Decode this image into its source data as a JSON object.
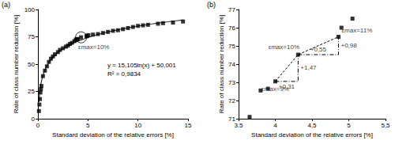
{
  "chart_data": [
    {
      "type": "scatter",
      "title": "(a)",
      "x_label": "Standard deviation of the relative errors [%]",
      "y_label": "Rate of class number reduction [%]",
      "x": [
        0.1,
        0.15,
        0.2,
        0.25,
        0.3,
        0.35,
        0.5,
        0.7,
        0.9,
        1.1,
        1.3,
        1.5,
        1.7,
        2.0,
        2.2,
        2.5,
        2.8,
        3.0,
        3.2,
        3.4,
        3.65,
        3.8,
        3.9,
        4.0,
        4.31,
        4.86,
        4.9,
        5.05,
        5.5,
        6.0,
        6.5,
        7.0,
        7.5,
        8.0,
        8.5,
        9.0,
        9.5,
        10.0,
        10.5,
        11.0,
        12.0,
        12.5,
        13.5,
        14.5
      ],
      "values": [
        7,
        13,
        18,
        24,
        27,
        30,
        39,
        44,
        48,
        52,
        55,
        57,
        59,
        61,
        63,
        64.5,
        66,
        67,
        68.5,
        69.5,
        71.1,
        72.55,
        72.65,
        73.05,
        74.52,
        75.5,
        76.0,
        76.5,
        77,
        77.5,
        78.5,
        79.5,
        80.5,
        81,
        82,
        83,
        84,
        85,
        85.5,
        86,
        87,
        87.5,
        88,
        89
      ],
      "color": "#000000",
      "marker": "square",
      "grid": false,
      "xlim": [
        0,
        15
      ],
      "xticks": [
        0,
        5,
        10,
        15
      ],
      "ylim": [
        0,
        100
      ],
      "yticks": [
        0,
        25,
        50,
        75,
        100
      ],
      "trendline": {
        "a": 15.105,
        "b": 50.001,
        "text": "y = 15,105ln(x) + 50,001",
        "r2_text": "R² = 0,9834"
      },
      "annotations": [
        {
          "text": "εmax=10%",
          "x": 4.31,
          "y": 74.52
        }
      ]
    },
    {
      "type": "scatter",
      "title": "(b)",
      "x_label": "Standard deviation of the relative errors [%]",
      "y_label": "Rate of class number reduction [%]",
      "x": [
        3.65,
        3.8,
        3.9,
        4.0,
        4.31,
        4.86,
        4.9,
        5.05
      ],
      "values": [
        71.1,
        72.55,
        72.65,
        73.05,
        74.52,
        75.5,
        76.0,
        76.5
      ],
      "color": "#000000",
      "marker": "square",
      "grid": false,
      "xlim": [
        3.5,
        5.5
      ],
      "xticks": [
        3.5,
        4,
        {
          "value": 4.5,
          "label": "4,5"
        },
        5,
        {
          "value": 5.5,
          "label": "5,5"
        }
      ],
      "ylim": [
        71,
        77
      ],
      "yticks": [
        71,
        72,
        73,
        74,
        75,
        76,
        77
      ],
      "annotations": [
        {
          "text": "εmax=9%",
          "x": 4.0,
          "y": 73.05
        },
        {
          "text": "εmax=10%",
          "x": 4.31,
          "y": 74.52
        },
        {
          "text": "εmax=11%",
          "x": 4.86,
          "y": 75.5
        }
      ],
      "steps": [
        {
          "dx_label": "+0,31",
          "dy_label": "+1,47"
        },
        {
          "dx_label": "+0,55",
          "dy_label": "+0,98"
        }
      ]
    }
  ]
}
